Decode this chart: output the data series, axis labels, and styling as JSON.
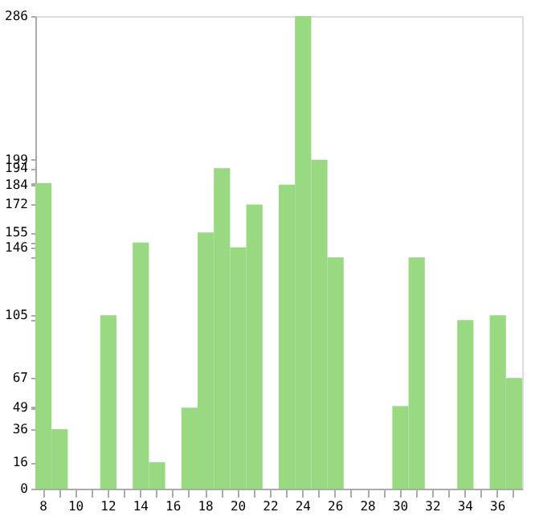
{
  "chart_data": {
    "type": "bar",
    "categories": [
      "8",
      null,
      "10",
      null,
      "12",
      null,
      "14",
      null,
      "16",
      null,
      "18",
      null,
      "20",
      null,
      "22",
      null,
      "24",
      null,
      "26",
      null,
      "28",
      null,
      "30",
      null,
      "32",
      null,
      "34",
      null,
      "36",
      null
    ],
    "series": [
      {
        "color": "#98d982",
        "values": [
          185,
          36,
          0,
          0,
          105,
          0,
          149,
          16,
          0,
          49,
          155,
          194,
          146,
          172,
          0,
          184,
          286,
          199,
          140,
          0,
          0,
          0,
          50,
          140,
          0,
          0,
          102,
          0,
          105,
          67
        ]
      }
    ],
    "ylim": [
      0,
      286
    ],
    "yticks": [
      0,
      16,
      36,
      49,
      {
        "value": 50,
        "label": null
      },
      67,
      {
        "value": 102,
        "label": null
      },
      105,
      {
        "value": 140,
        "label": null
      },
      146,
      {
        "value": 149,
        "label": null
      },
      155,
      172,
      184,
      {
        "value": 185,
        "label": null
      },
      194,
      199,
      286
    ],
    "grid": false
  }
}
